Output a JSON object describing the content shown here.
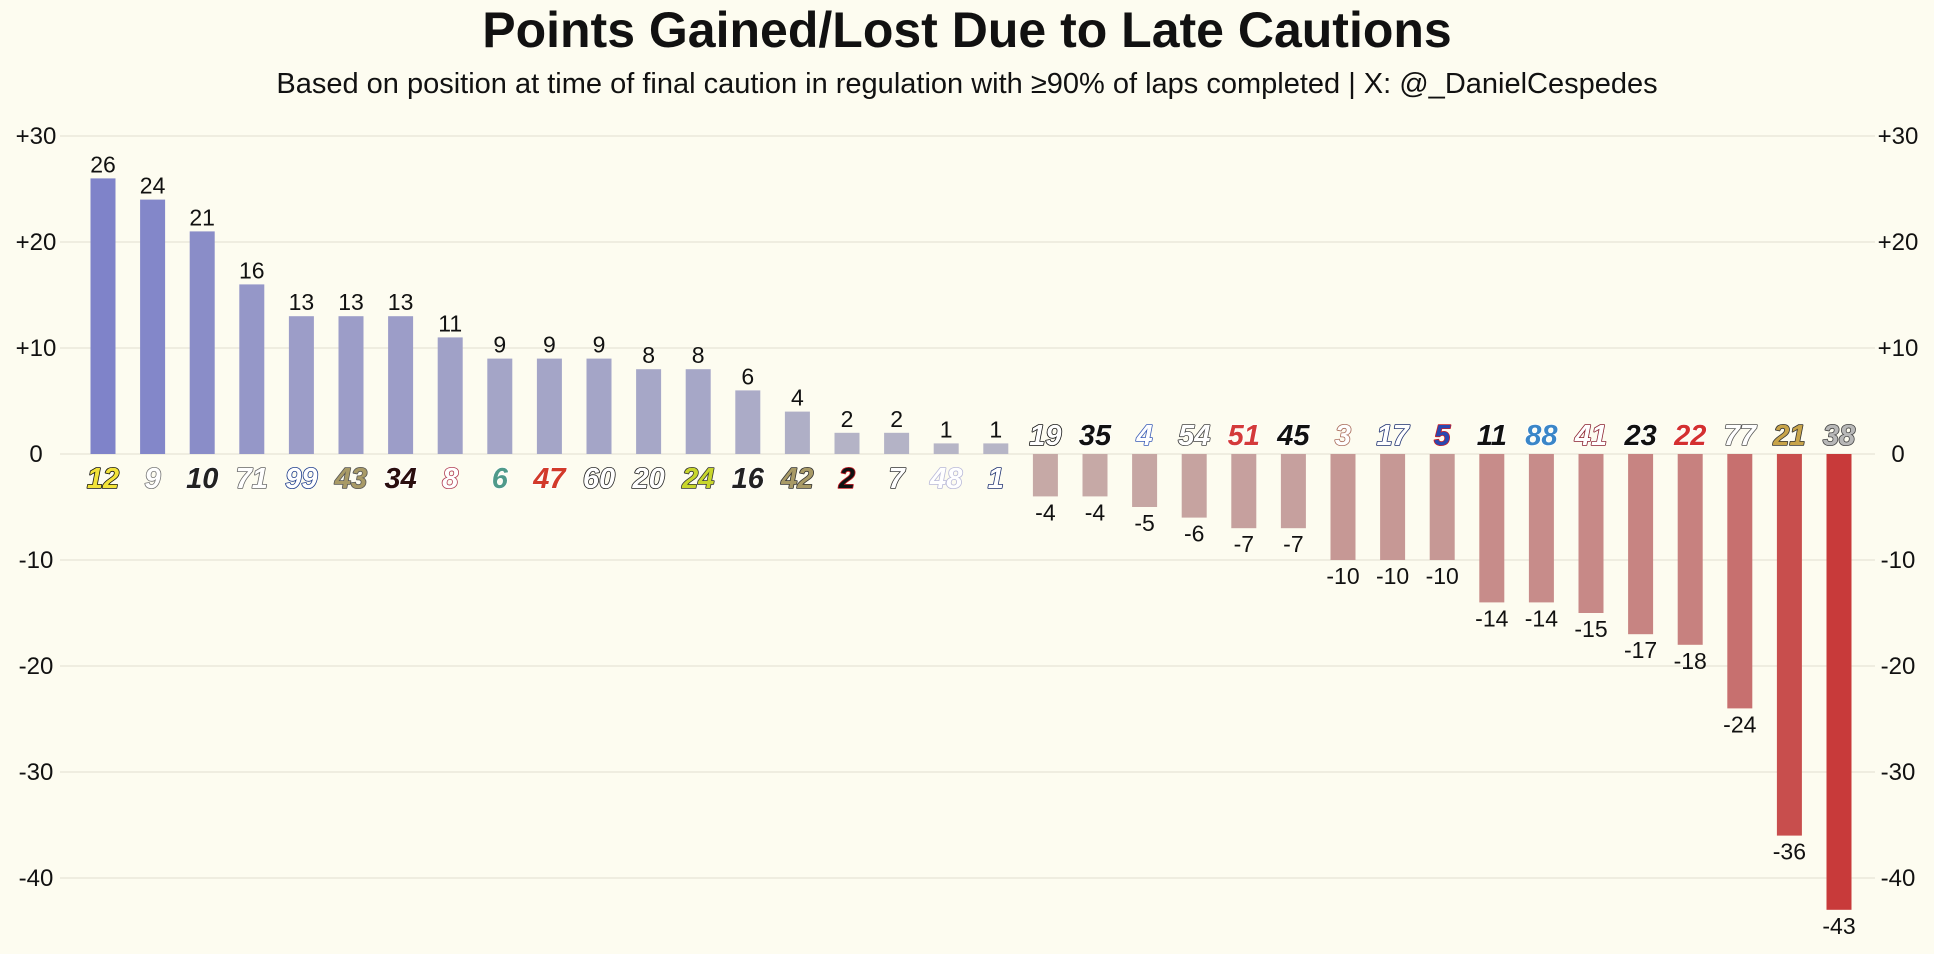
{
  "chart_data": {
    "type": "bar",
    "title": "Points Gained/Lost Due to Late Cautions",
    "subtitle": "Based on position at time of final caution in regulation with ≥90% of laps completed | X: @_DanielCespedes",
    "categories": [
      "12",
      "9",
      "10",
      "71",
      "99",
      "43",
      "34",
      "8",
      "6",
      "47",
      "60",
      "20",
      "24",
      "16",
      "42",
      "2",
      "7",
      "48",
      "1",
      "19",
      "35",
      "4",
      "54",
      "51",
      "45",
      "3",
      "17",
      "5",
      "11",
      "88",
      "41",
      "23",
      "22",
      "77",
      "21",
      "38"
    ],
    "values": [
      26,
      24,
      21,
      16,
      13,
      13,
      13,
      11,
      9,
      9,
      9,
      8,
      8,
      6,
      4,
      2,
      2,
      1,
      1,
      -4,
      -4,
      -5,
      -6,
      -7,
      -7,
      -10,
      -10,
      -10,
      -14,
      -14,
      -15,
      -17,
      -18,
      -24,
      -36,
      -43
    ],
    "ylim": [
      -45,
      32
    ],
    "yticks": [
      30,
      20,
      10,
      0,
      -10,
      -20,
      -30,
      -40
    ],
    "ytick_labels": [
      "+30",
      "+20",
      "+10",
      "0",
      "-10",
      "-20",
      "-30",
      "-40"
    ],
    "grid": true,
    "xlabel": "",
    "ylabel": "",
    "colors": {
      "positive_max": "#7f83c9",
      "positive_min": "#b8b7c6",
      "negative_min": "#c6b4b1",
      "negative_max": "#c83a3a",
      "grid": "#efede0"
    },
    "number_styles": [
      {
        "fill": "#f2e33a",
        "stroke": "#111111"
      },
      {
        "fill": "#ffffff",
        "stroke": "#777777"
      },
      {
        "fill": "#222222",
        "stroke": "#ffffff"
      },
      {
        "fill": "#ffffff",
        "stroke": "#666666"
      },
      {
        "fill": "#ffffff",
        "stroke": "#1c3b8c"
      },
      {
        "fill": "#a89a66",
        "stroke": "#555555"
      },
      {
        "fill": "#2a0e0e",
        "stroke": "#ffffff"
      },
      {
        "fill": "#ffffff",
        "stroke": "#b03a52"
      },
      {
        "fill": "#4f9a8a",
        "stroke": "#ffffff"
      },
      {
        "fill": "#d23a2a",
        "stroke": "#ffffff"
      },
      {
        "fill": "#ffffff",
        "stroke": "#222222"
      },
      {
        "fill": "#ffffff",
        "stroke": "#222222"
      },
      {
        "fill": "#c8d62c",
        "stroke": "#333333"
      },
      {
        "fill": "#222222",
        "stroke": "#ffffff"
      },
      {
        "fill": "#a89a66",
        "stroke": "#333333"
      },
      {
        "fill": "#111111",
        "stroke": "#c8202a"
      },
      {
        "fill": "#ffffff",
        "stroke": "#333333"
      },
      {
        "fill": "#ffffff",
        "stroke": "#b8b8d8"
      },
      {
        "fill": "#ffffff",
        "stroke": "#1c2f70"
      },
      {
        "fill": "#ffffff",
        "stroke": "#111111"
      },
      {
        "fill": "#111111",
        "stroke": "#ffffff"
      },
      {
        "fill": "#ffffff",
        "stroke": "#3a5cb8"
      },
      {
        "fill": "#ffffff",
        "stroke": "#444444"
      },
      {
        "fill": "#d43a3a",
        "stroke": "#ffffff"
      },
      {
        "fill": "#111111",
        "stroke": "#ffffff"
      },
      {
        "fill": "#ffffff",
        "stroke": "#a86a5a"
      },
      {
        "fill": "#ffffff",
        "stroke": "#1c2f70"
      },
      {
        "fill": "#2a48b0",
        "stroke": "#c8202a"
      },
      {
        "fill": "#111111",
        "stroke": "#ffffff"
      },
      {
        "fill": "#3a86c8",
        "stroke": "#ffffff"
      },
      {
        "fill": "#ffffff",
        "stroke": "#8a2030"
      },
      {
        "fill": "#111111",
        "stroke": "#ffffff"
      },
      {
        "fill": "#d43030",
        "stroke": "#ffffff"
      },
      {
        "fill": "#ffffff",
        "stroke": "#555555"
      },
      {
        "fill": "#c8a44a",
        "stroke": "#333333"
      },
      {
        "fill": "#b8b8b8",
        "stroke": "#444444"
      }
    ]
  }
}
